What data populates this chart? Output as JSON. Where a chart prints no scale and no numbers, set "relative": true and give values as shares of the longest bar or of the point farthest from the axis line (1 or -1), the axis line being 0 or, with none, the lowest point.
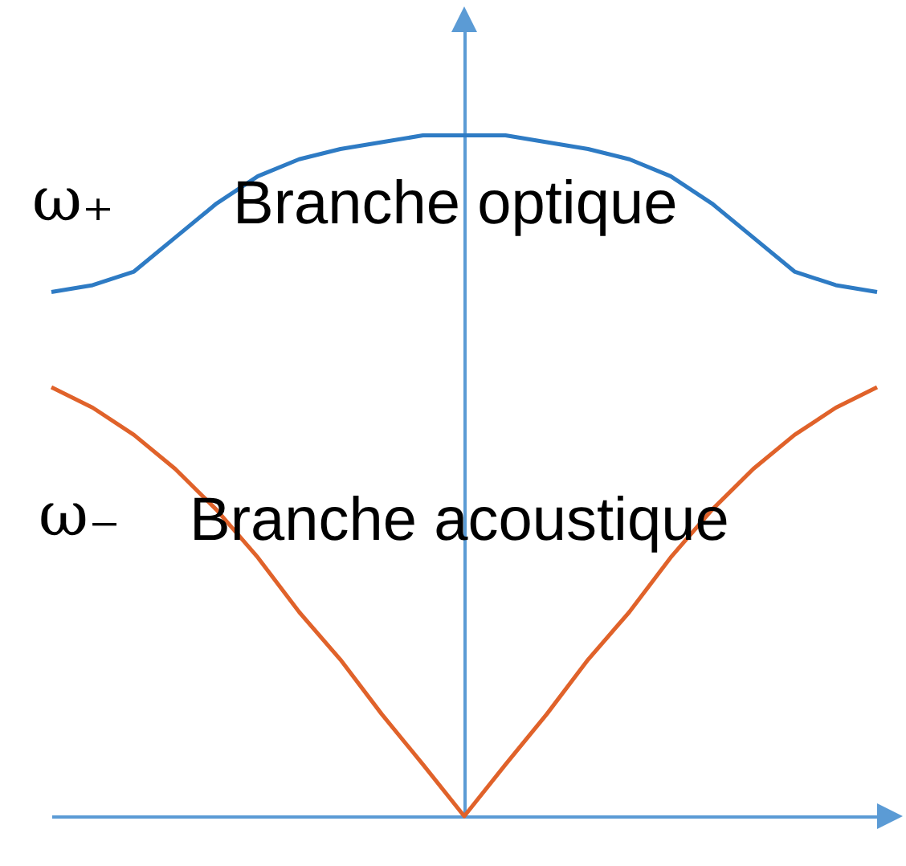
{
  "chart_data": {
    "type": "line",
    "relative": true,
    "categories": [
      null,
      null,
      null,
      null,
      null,
      null,
      null,
      null,
      null,
      null,
      null,
      null,
      null,
      null,
      null,
      null,
      null,
      null,
      null,
      null,
      null
    ],
    "series": [
      {
        "name": "Branche optique",
        "color": "#2e7bc4",
        "values": [
          0.77,
          0.78,
          0.8,
          0.85,
          0.9,
          0.94,
          0.965,
          0.98,
          0.99,
          1,
          1,
          1,
          0.99,
          0.98,
          0.965,
          0.94,
          0.9,
          0.85,
          0.8,
          0.78,
          0.77
        ]
      },
      {
        "name": "Branche acoustique",
        "color": "#e0622a",
        "values": [
          0.63,
          0.6,
          0.56,
          0.51,
          0.45,
          0.38,
          0.3,
          0.23,
          0.15,
          0.076,
          0,
          0.076,
          0.15,
          0.23,
          0.3,
          0.38,
          0.45,
          0.51,
          0.56,
          0.6,
          0.63
        ]
      }
    ],
    "annotations": [
      "ω₊",
      "ω₋"
    ],
    "marker": "none",
    "line_style": "solid"
  }
}
